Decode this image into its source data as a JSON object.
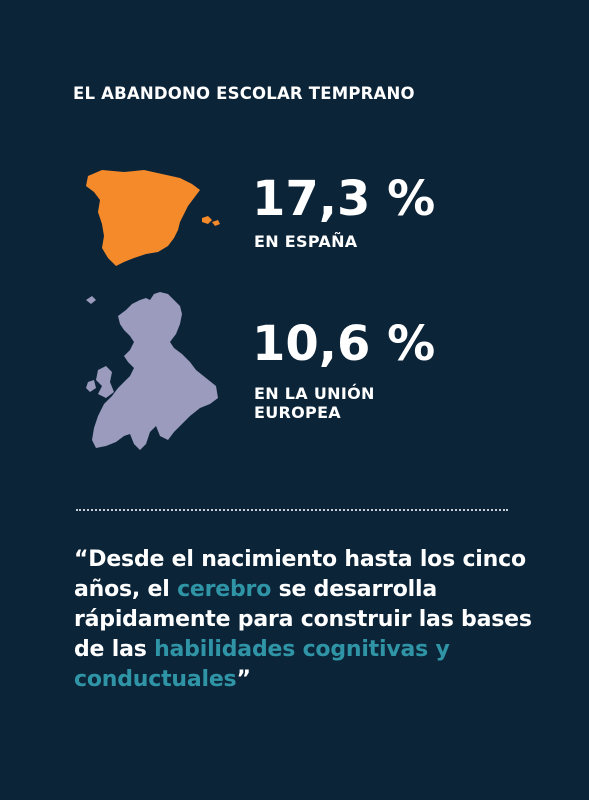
{
  "header": {
    "title": "EL ABANDONO ESCOLAR TEMPRANO"
  },
  "stats": [
    {
      "value": "17,3 %",
      "label": "EN ESPAÑA",
      "icon": "spain-map-icon",
      "color": "#f58a2b"
    },
    {
      "value": "10,6 %",
      "label": "EN LA UNIÓN EUROPEA",
      "icon": "europe-map-icon",
      "color": "#9a9bbd"
    }
  ],
  "quote": {
    "open_mark": "“",
    "part1": "Desde el nacimiento hasta los cinco años, el ",
    "highlight1": "cerebro",
    "part2": " se desarrolla rápidamente para construir las bases de las ",
    "highlight2": "habilidades cognitivas y conductuales",
    "close_mark": "”",
    "highlight_color": "#2f95a6"
  },
  "colors": {
    "background": "#0c2438",
    "text": "#ffffff"
  }
}
